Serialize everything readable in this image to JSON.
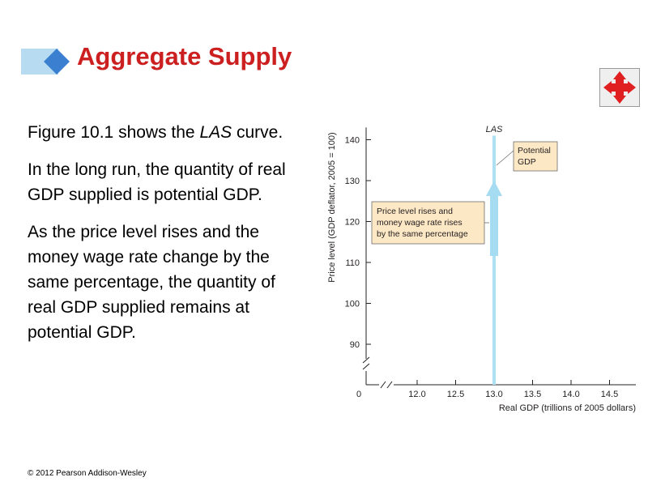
{
  "slide": {
    "title": "Aggregate Supply",
    "paragraphs": [
      {
        "before": "Figure 10.1 shows the ",
        "emph": "LAS",
        "after": " curve."
      },
      {
        "text": "In the long run, the quantity of real GDP supplied is potential GDP."
      },
      {
        "text": "As the price level rises and the money wage rate change by the same percentage, the quantity of real GDP supplied remains at potential GDP."
      }
    ],
    "copyright": "© 2012 Pearson Addison-Wesley",
    "nav_icon": "move-arrows-icon"
  },
  "colors": {
    "title": "#cc2020",
    "las_line": "#aee0f4",
    "arrow": "#a6dcf2",
    "callout_fill": "#fde8c6",
    "axis": "#231f20",
    "nav_arrow": "#e02020"
  },
  "chart_data": {
    "type": "line",
    "xlabel": "Real GDP (trillions of 2005 dollars)",
    "ylabel": "Price level (GDP deflator, 2005 = 100)",
    "origin_label": "0",
    "x_ticks": [
      12.0,
      12.5,
      13.0,
      13.5,
      14.0,
      14.5
    ],
    "x_tick_labels": [
      "12.0",
      "12.5",
      "13.0",
      "13.5",
      "14.0",
      "14.5"
    ],
    "y_ticks": [
      90,
      100,
      110,
      120,
      130,
      140
    ],
    "y_tick_labels": [
      "90",
      "100",
      "110",
      "120",
      "130",
      "140"
    ],
    "xlim": [
      11.6,
      14.9
    ],
    "ylim": [
      84,
      143
    ],
    "axis_breaks": true,
    "grid": false,
    "series": [
      {
        "name": "LAS",
        "x": [
          13.0,
          13.0
        ],
        "y": [
          84,
          141
        ]
      }
    ],
    "arrow": {
      "x": 13.0,
      "from_y": 110,
      "to_y": 130
    },
    "annotations": [
      {
        "id": "potential-gdp",
        "lines": [
          "Potential",
          "GDP"
        ]
      },
      {
        "id": "price-level-rises",
        "lines": [
          "Price level rises and",
          "money wage rate rises",
          "by the same percentage"
        ]
      }
    ]
  }
}
